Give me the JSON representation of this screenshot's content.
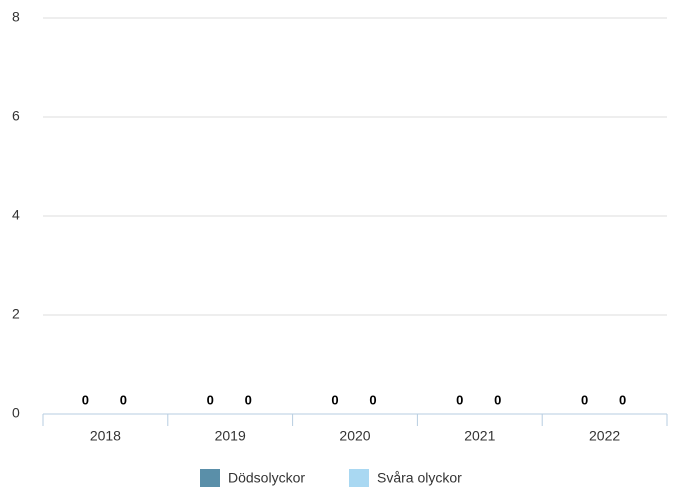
{
  "chart_data": {
    "type": "bar",
    "categories": [
      "2018",
      "2019",
      "2020",
      "2021",
      "2022"
    ],
    "series": [
      {
        "name": "Dödsolyckor",
        "color": "#5a8fa9",
        "values": [
          0,
          0,
          0,
          0,
          0
        ]
      },
      {
        "name": "Svåra olyckor",
        "color": "#a9d8f2",
        "values": [
          0,
          0,
          0,
          0,
          0
        ]
      }
    ],
    "ylim": [
      0,
      8
    ],
    "yticks": [
      0,
      2,
      4,
      6,
      8
    ],
    "grid": true,
    "legend": "bottom"
  }
}
